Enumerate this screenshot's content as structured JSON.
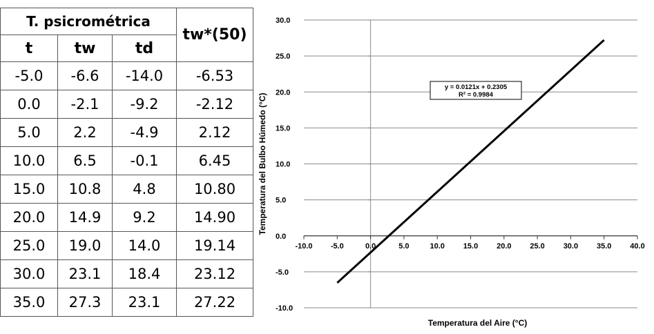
{
  "table": {
    "group_header": "T. psicrométrica",
    "right_header": "tw*(50)",
    "columns": [
      "t",
      "tw",
      "td"
    ],
    "rows": [
      [
        "-5.0",
        "-6.6",
        "-14.0",
        "-6.53"
      ],
      [
        "0.0",
        "-2.1",
        "-9.2",
        "-2.12"
      ],
      [
        "5.0",
        "2.2",
        "-4.9",
        "2.12"
      ],
      [
        "10.0",
        "6.5",
        "-0.1",
        "6.45"
      ],
      [
        "15.0",
        "10.8",
        "4.8",
        "10.80"
      ],
      [
        "20.0",
        "14.9",
        "9.2",
        "14.90"
      ],
      [
        "25.0",
        "19.0",
        "14.0",
        "19.14"
      ],
      [
        "30.0",
        "23.1",
        "18.4",
        "23.12"
      ],
      [
        "35.0",
        "27.3",
        "23.1",
        "27.22"
      ]
    ]
  },
  "chart_data": {
    "type": "line",
    "xlabel": "Temperatura del Aire (°C)",
    "ylabel": "Temperatura del Bulbo Húmedo (°C)",
    "xlim": [
      -10,
      40
    ],
    "ylim": [
      -10,
      30
    ],
    "xticks": [
      "-10.0",
      "-5.0",
      "0.0",
      "5.0",
      "10.0",
      "15.0",
      "20.0",
      "25.0",
      "30.0",
      "35.0",
      "40.0"
    ],
    "yticks": [
      "-10.0",
      "-5.0",
      "0.0",
      "5.0",
      "10.0",
      "15.0",
      "20.0",
      "25.0",
      "30.0"
    ],
    "series": [
      {
        "x": [
          -5.0,
          35.0
        ],
        "y": [
          -6.53,
          27.22
        ]
      }
    ],
    "annotation": [
      "y = 0.0121x + 0.2305",
      "R² = 0.9984"
    ],
    "grid": "horizontal",
    "line_color": "#000000"
  }
}
